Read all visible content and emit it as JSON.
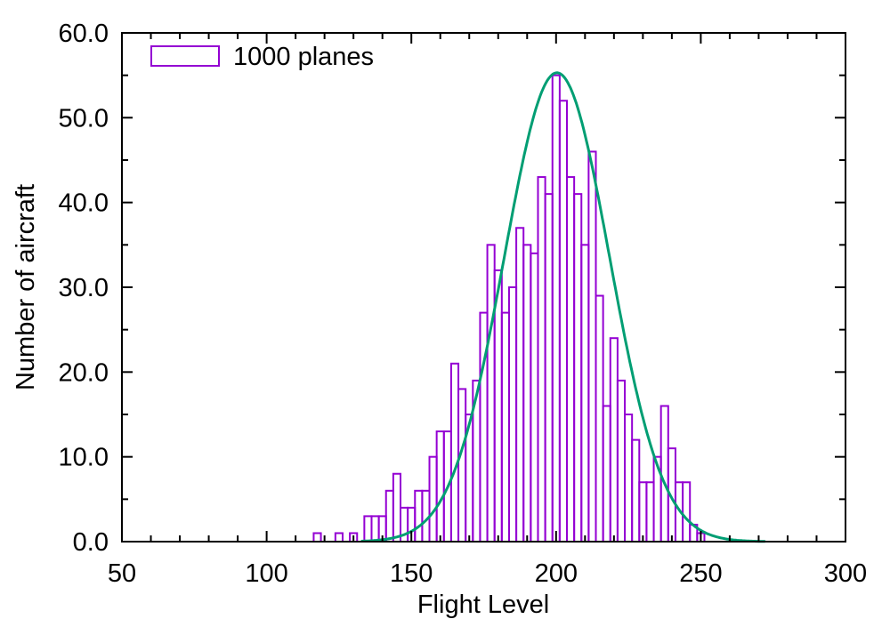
{
  "figure": {
    "background": "#ffffff",
    "palette": {
      "bar_outline": "#9400d3",
      "curve": "#009e73",
      "axis": "#000000",
      "text": "#000000"
    }
  },
  "chart_data": {
    "type": "bar",
    "subtype": "histogram-with-fit-curve",
    "title": "",
    "xlabel": "Flight Level",
    "ylabel": "Number of aircraft",
    "legend": {
      "label": "1000 planes",
      "position": "top-left-inside",
      "swatch": "purple-outlined-box"
    },
    "grid": false,
    "bin_width": 2.5,
    "categories": [
      115,
      117.5,
      120,
      122.5,
      125,
      127.5,
      130,
      132.5,
      135,
      137.5,
      140,
      142.5,
      145,
      147.5,
      150,
      152.5,
      155,
      157.5,
      160,
      162.5,
      165,
      167.5,
      170,
      172.5,
      175,
      177.5,
      180,
      182.5,
      185,
      187.5,
      190,
      192.5,
      195,
      197.5,
      200,
      202.5,
      205,
      207.5,
      210,
      212.5,
      215,
      217.5,
      220,
      222.5,
      225,
      227.5,
      230,
      232.5,
      235,
      237.5,
      240,
      242.5,
      245,
      247.5,
      250
    ],
    "values": [
      0,
      1,
      0,
      0,
      1,
      0,
      1,
      0,
      3,
      3,
      3,
      6,
      8,
      4,
      4,
      6,
      6,
      10,
      13,
      13,
      21,
      18,
      15,
      19,
      27,
      35,
      32,
      27,
      30,
      37,
      35,
      34,
      43,
      41,
      55,
      52,
      43,
      41,
      35,
      46,
      29,
      16,
      24,
      19,
      15,
      12,
      7,
      7,
      10,
      16,
      11,
      7,
      7,
      2,
      1
    ],
    "series": [
      {
        "name": "1000 planes",
        "type": "histogram-outline",
        "color": "#9400d3"
      },
      {
        "name": "gaussian-fit",
        "type": "line",
        "color": "#009e73",
        "curve": {
          "shape": "gaussian",
          "amplitude": 55.3,
          "mean": 200.3,
          "sigma": 18.2,
          "draw_from": 133,
          "draw_to": 272
        }
      }
    ],
    "x_axis": {
      "label": "Flight Level",
      "range": [
        50,
        300
      ],
      "major_ticks": [
        50,
        100,
        150,
        200,
        250,
        300
      ],
      "tick_labels": [
        "50",
        "100",
        "150",
        "200",
        "250",
        "300"
      ],
      "minor_step": 10
    },
    "y_axis": {
      "label": "Number of aircraft",
      "range": [
        0,
        60
      ],
      "major_ticks": [
        0,
        10,
        20,
        30,
        40,
        50,
        60
      ],
      "tick_labels": [
        "0.0",
        "10.0",
        "20.0",
        "30.0",
        "40.0",
        "50.0",
        "60.0"
      ],
      "minor_step": 5
    }
  }
}
